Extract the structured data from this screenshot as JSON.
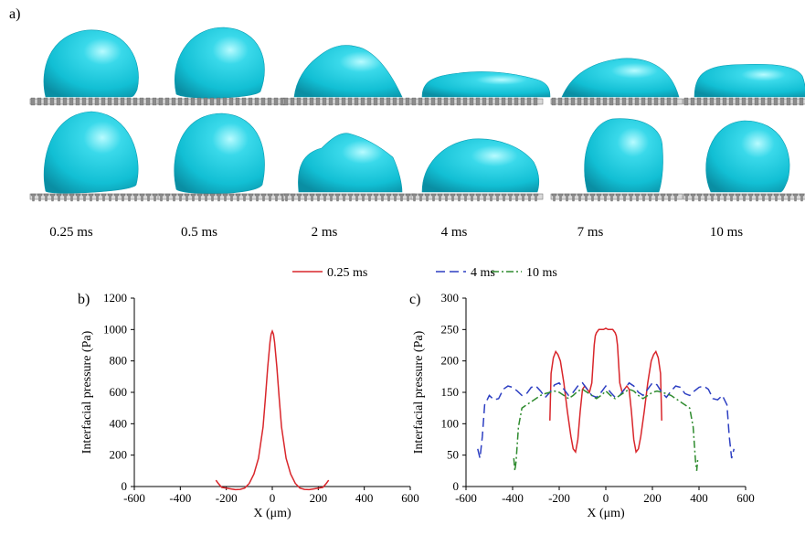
{
  "panel_a": {
    "label": "a)",
    "time_labels": [
      "0.25 ms",
      "0.5 ms",
      "2 ms",
      "4 ms",
      "7 ms",
      "10 ms"
    ],
    "droplet_color": "#1ec8dc",
    "substrate_color": "#8c8c8c",
    "rows": [
      "upper substrate",
      "lower substrate"
    ]
  },
  "legend": {
    "items": [
      {
        "label": "0.25 ms",
        "color": "#d9262b",
        "style": "solid"
      },
      {
        "label": "4 ms",
        "color": "#2d3fc2",
        "style": "dashed"
      },
      {
        "label": "10 ms",
        "color": "#2e8b2e",
        "style": "dash-dot"
      }
    ]
  },
  "chart_data": [
    {
      "type": "line",
      "panel_label": "b)",
      "xlabel": "X (μm)",
      "ylabel": "Interfacial pressure (Pa)",
      "xlim": [
        -600,
        600
      ],
      "ylim": [
        0,
        1200
      ],
      "xticks": [
        -600,
        -400,
        -200,
        0,
        200,
        400,
        600
      ],
      "yticks": [
        0,
        200,
        400,
        600,
        800,
        1000,
        1200
      ],
      "series": [
        {
          "name": "0.25 ms",
          "color": "#d9262b",
          "style": "solid",
          "x": [
            -245,
            -235,
            -220,
            -200,
            -180,
            -160,
            -140,
            -120,
            -100,
            -80,
            -60,
            -40,
            -30,
            -20,
            -10,
            -5,
            0,
            5,
            10,
            20,
            30,
            40,
            60,
            80,
            100,
            120,
            140,
            160,
            180,
            200,
            220,
            235,
            245
          ],
          "y": [
            40,
            20,
            -5,
            -10,
            -15,
            -20,
            -18,
            -10,
            20,
            80,
            180,
            380,
            560,
            760,
            920,
            970,
            990,
            970,
            920,
            760,
            560,
            380,
            180,
            80,
            20,
            -10,
            -18,
            -20,
            -15,
            -10,
            -5,
            20,
            40
          ]
        }
      ]
    },
    {
      "type": "line",
      "panel_label": "c)",
      "xlabel": "X (μm)",
      "ylabel": "Interfacial pressure (Pa)",
      "xlim": [
        -600,
        600
      ],
      "ylim": [
        0,
        300
      ],
      "xticks": [
        -600,
        -400,
        -200,
        0,
        200,
        400,
        600
      ],
      "yticks": [
        0,
        50,
        100,
        150,
        200,
        250,
        300
      ],
      "series": [
        {
          "name": "0.25 ms",
          "color": "#d9262b",
          "style": "solid",
          "x": [
            -240,
            -235,
            -225,
            -215,
            -205,
            -195,
            -180,
            -165,
            -150,
            -140,
            -130,
            -120,
            -110,
            -100,
            -90,
            -80,
            -70,
            -60,
            -50,
            -45,
            -40,
            -30,
            -20,
            -10,
            0,
            10,
            20,
            30,
            40,
            45,
            50,
            60,
            70,
            80,
            90,
            100,
            110,
            120,
            130,
            140,
            150,
            165,
            180,
            195,
            205,
            215,
            225,
            235,
            240
          ],
          "y": [
            105,
            180,
            205,
            215,
            210,
            200,
            165,
            120,
            80,
            60,
            55,
            75,
            120,
            155,
            160,
            155,
            150,
            165,
            225,
            240,
            245,
            250,
            250,
            250,
            252,
            250,
            250,
            250,
            245,
            240,
            225,
            165,
            150,
            155,
            160,
            155,
            120,
            75,
            55,
            60,
            80,
            120,
            165,
            200,
            210,
            215,
            205,
            180,
            105
          ]
        },
        {
          "name": "4 ms",
          "color": "#2d3fc2",
          "style": "dashed",
          "x": [
            -550,
            -540,
            -530,
            -520,
            -500,
            -480,
            -460,
            -440,
            -420,
            -400,
            -380,
            -360,
            -340,
            -320,
            -300,
            -280,
            -260,
            -240,
            -220,
            -200,
            -180,
            -160,
            -140,
            -120,
            -100,
            -80,
            -60,
            -40,
            -20,
            0,
            20,
            40,
            60,
            80,
            100,
            120,
            140,
            160,
            180,
            200,
            220,
            240,
            260,
            280,
            300,
            320,
            340,
            360,
            380,
            400,
            420,
            440,
            460,
            480,
            500,
            520,
            530,
            540,
            550
          ],
          "y": [
            60,
            45,
            80,
            130,
            145,
            138,
            140,
            155,
            160,
            158,
            152,
            145,
            148,
            158,
            160,
            152,
            142,
            150,
            162,
            165,
            155,
            145,
            150,
            160,
            165,
            155,
            145,
            142,
            150,
            160,
            150,
            142,
            145,
            155,
            165,
            160,
            150,
            145,
            155,
            165,
            162,
            150,
            142,
            152,
            160,
            158,
            148,
            145,
            152,
            158,
            160,
            155,
            140,
            138,
            145,
            130,
            80,
            45,
            60
          ]
        },
        {
          "name": "10 ms",
          "color": "#2e8b2e",
          "style": "dash-dot",
          "x": [
            -395,
            -390,
            -385,
            -375,
            -360,
            -340,
            -320,
            -300,
            -280,
            -260,
            -240,
            -220,
            -200,
            -180,
            -160,
            -140,
            -120,
            -100,
            -80,
            -60,
            -40,
            -20,
            0,
            20,
            40,
            60,
            80,
            100,
            120,
            140,
            160,
            180,
            200,
            220,
            240,
            260,
            280,
            300,
            320,
            340,
            360,
            375,
            385,
            390,
            395
          ],
          "y": [
            45,
            25,
            40,
            95,
            125,
            130,
            135,
            140,
            145,
            148,
            150,
            152,
            150,
            145,
            140,
            145,
            152,
            155,
            150,
            145,
            140,
            145,
            152,
            145,
            140,
            145,
            150,
            155,
            152,
            145,
            140,
            145,
            150,
            152,
            150,
            148,
            145,
            140,
            135,
            130,
            125,
            95,
            40,
            25,
            45
          ]
        }
      ]
    }
  ]
}
